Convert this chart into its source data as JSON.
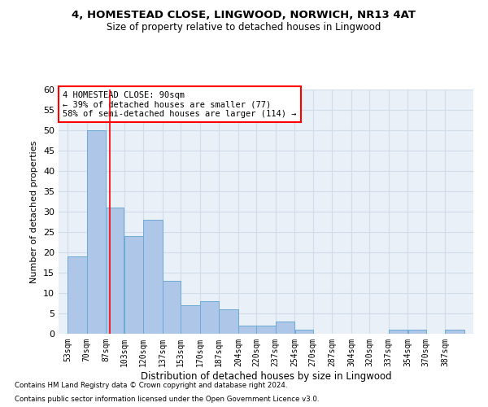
{
  "title_line1": "4, HOMESTEAD CLOSE, LINGWOOD, NORWICH, NR13 4AT",
  "title_line2": "Size of property relative to detached houses in Lingwood",
  "xlabel": "Distribution of detached houses by size in Lingwood",
  "ylabel": "Number of detached properties",
  "bin_labels": [
    "53sqm",
    "70sqm",
    "87sqm",
    "103sqm",
    "120sqm",
    "137sqm",
    "153sqm",
    "170sqm",
    "187sqm",
    "204sqm",
    "220sqm",
    "237sqm",
    "254sqm",
    "270sqm",
    "287sqm",
    "304sqm",
    "320sqm",
    "337sqm",
    "354sqm",
    "370sqm",
    "387sqm"
  ],
  "bar_values": [
    19,
    50,
    31,
    24,
    28,
    13,
    7,
    8,
    6,
    2,
    2,
    3,
    1,
    0,
    0,
    0,
    0,
    1,
    1,
    0,
    1
  ],
  "bar_color": "#aec6e8",
  "bar_edge_color": "#6aaad4",
  "grid_color": "#d0dce8",
  "background_color": "#eaf0f8",
  "annotation_box_text": "4 HOMESTEAD CLOSE: 90sqm\n← 39% of detached houses are smaller (77)\n58% of semi-detached houses are larger (114) →",
  "red_line_x": 90,
  "ylim": [
    0,
    60
  ],
  "yticks": [
    0,
    5,
    10,
    15,
    20,
    25,
    30,
    35,
    40,
    45,
    50,
    55,
    60
  ],
  "footnote_line1": "Contains HM Land Registry data © Crown copyright and database right 2024.",
  "footnote_line2": "Contains public sector information licensed under the Open Government Licence v3.0.",
  "bin_edges": [
    53,
    70,
    87,
    103,
    120,
    137,
    153,
    170,
    187,
    204,
    220,
    237,
    254,
    270,
    287,
    304,
    320,
    337,
    354,
    370,
    387,
    404
  ]
}
